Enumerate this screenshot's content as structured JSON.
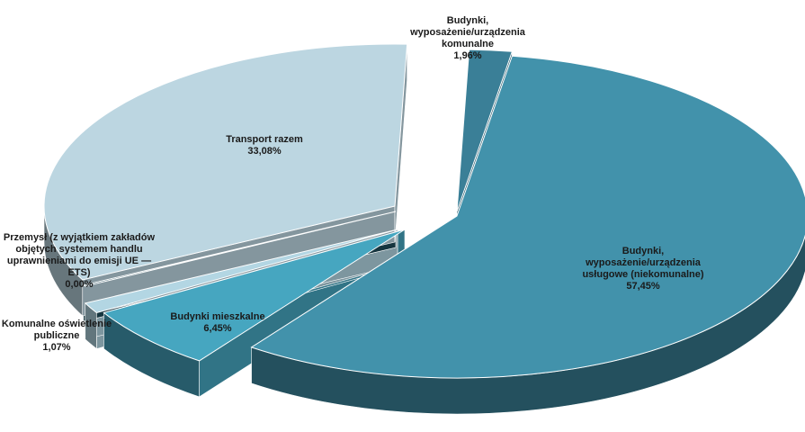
{
  "chart_data": {
    "type": "pie",
    "variant": "3d-exploded",
    "title": "",
    "slices": [
      {
        "label": "Budynki, wyposażenie/urządzenia komunalne",
        "value": 1.96,
        "value_text": "1,96%",
        "color": "#3a7f97"
      },
      {
        "label": "Budynki, wyposażenie/urządzenia usługowe (niekomunalne)",
        "value": 57.45,
        "value_text": "57,45%",
        "color": "#4292ab"
      },
      {
        "label": "Budynki  mieszkalne",
        "value": 6.45,
        "value_text": "6,45%",
        "color": "#46a6c0"
      },
      {
        "label": "Komunalne  oświetlenie publiczne",
        "value": 1.07,
        "value_text": "1,07%",
        "color": "#b3d6e3"
      },
      {
        "label": "Przemysł (z wyjątkiem zakładów objętych  systemem handlu uprawnieniami do emisji UE — ETS)",
        "value": 0.0,
        "value_text": "0,00%",
        "color": "#1f4b5a"
      },
      {
        "label": "Transport razem",
        "value": 33.08,
        "value_text": "33,08%",
        "color": "#bcd6e1"
      }
    ],
    "legend": "none",
    "data_labels": "outside and inside, label with percent"
  }
}
